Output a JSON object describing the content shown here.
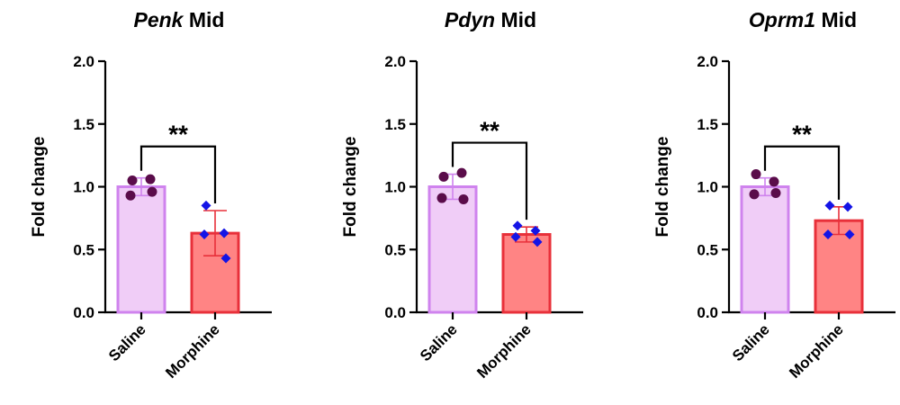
{
  "chart_data": [
    {
      "type": "bar",
      "title_gene": "Penk",
      "title_region": "Mid",
      "ylabel": "Fold change",
      "ylim": [
        0,
        2.0
      ],
      "yticks": [
        "0.0",
        "0.5",
        "1.0",
        "1.5",
        "2.0"
      ],
      "categories": [
        "Saline",
        "Morphine"
      ],
      "values": [
        1.0,
        0.63
      ],
      "errors": [
        0.07,
        0.18
      ],
      "points": [
        [
          1.05,
          1.06,
          0.93,
          0.96
        ],
        [
          0.85,
          0.63,
          0.62,
          0.43
        ]
      ],
      "significance": "**"
    },
    {
      "type": "bar",
      "title_gene": "Pdyn",
      "title_region": "Mid",
      "ylabel": "Fold change",
      "ylim": [
        0,
        2.0
      ],
      "yticks": [
        "0.0",
        "0.5",
        "1.0",
        "1.5",
        "2.0"
      ],
      "categories": [
        "Saline",
        "Morphine"
      ],
      "values": [
        1.0,
        0.62
      ],
      "errors": [
        0.1,
        0.06
      ],
      "points": [
        [
          1.08,
          1.11,
          0.91,
          0.9
        ],
        [
          0.69,
          0.65,
          0.6,
          0.56
        ]
      ],
      "significance": "**"
    },
    {
      "type": "bar",
      "title_gene": "Oprm1",
      "title_region": "Mid",
      "ylabel": "Fold change",
      "ylim": [
        0,
        2.0
      ],
      "yticks": [
        "0.0",
        "0.5",
        "1.0",
        "1.5",
        "2.0"
      ],
      "categories": [
        "Saline",
        "Morphine"
      ],
      "values": [
        1.0,
        0.73
      ],
      "errors": [
        0.07,
        0.11
      ],
      "points": [
        [
          1.1,
          1.04,
          0.94,
          0.95
        ],
        [
          0.85,
          0.84,
          0.62,
          0.62
        ]
      ],
      "significance": "**"
    }
  ],
  "colors": {
    "saline_fill": "#f0cdf7",
    "saline_stroke": "#cf83ee",
    "morphine_fill": "#ff8484",
    "morphine_stroke": "#e8303a",
    "saline_point": "#5a0c4a",
    "morphine_point": "#1414e6",
    "axis": "#000000"
  }
}
